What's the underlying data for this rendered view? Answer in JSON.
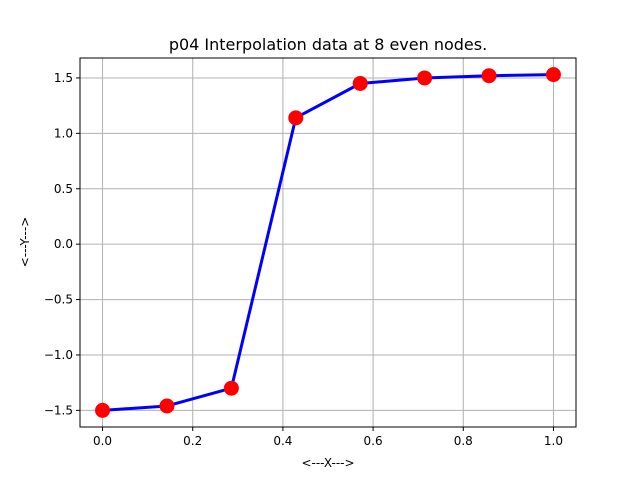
{
  "chart_data": {
    "type": "line",
    "title": "p04 Interpolation data at 8 even nodes.",
    "xlabel": "<---X--->",
    "ylabel": "<---Y--->",
    "xlim": [
      -0.05,
      1.05
    ],
    "ylim": [
      -1.65,
      1.68
    ],
    "xticks": [
      0.0,
      0.2,
      0.4,
      0.6,
      0.8,
      1.0
    ],
    "xtick_labels": [
      "0.0",
      "0.2",
      "0.4",
      "0.6",
      "0.8",
      "1.0"
    ],
    "yticks": [
      -1.5,
      -1.0,
      -0.5,
      0.0,
      0.5,
      1.0,
      1.5
    ],
    "ytick_labels": [
      "−1.5",
      "−1.0",
      "−0.5",
      "0.0",
      "0.5",
      "1.0",
      "1.5"
    ],
    "grid": true,
    "line_color": "#0000ff",
    "marker_color": "#ff0000",
    "x": [
      0.0,
      0.142857,
      0.285714,
      0.428571,
      0.571429,
      0.714286,
      0.857143,
      1.0
    ],
    "y": [
      -1.5,
      -1.46,
      -1.3,
      1.14,
      1.45,
      1.5,
      1.52,
      1.53
    ]
  }
}
